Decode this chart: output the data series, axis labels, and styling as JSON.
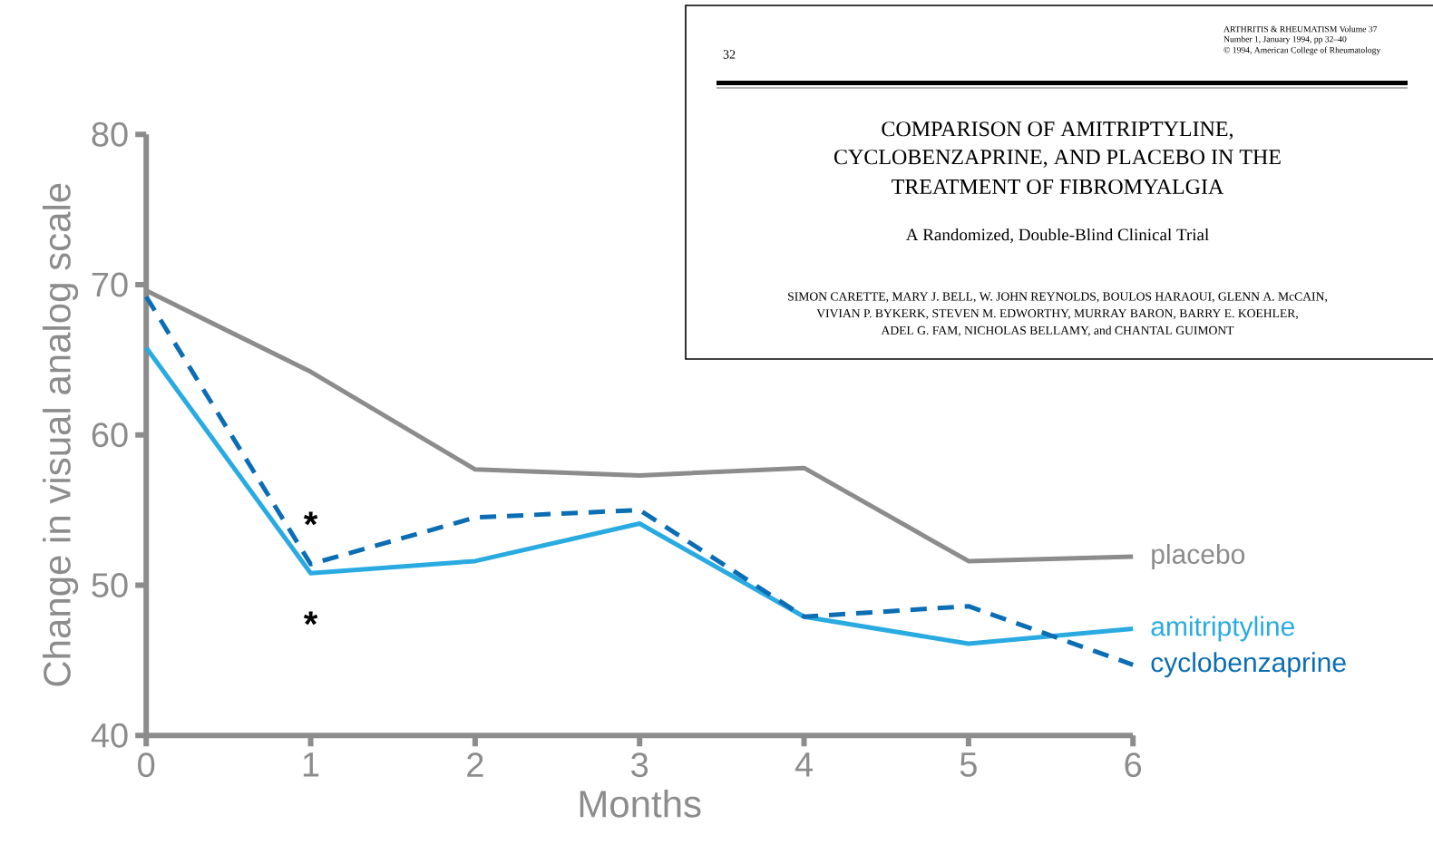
{
  "chart_data": {
    "type": "line",
    "xlabel": "Months",
    "ylabel": "Change in visual analog scale",
    "x": [
      0,
      1,
      2,
      3,
      4,
      5,
      6
    ],
    "xlim": [
      0,
      6
    ],
    "ylim": [
      40,
      80
    ],
    "xticks": [
      0,
      1,
      2,
      3,
      4,
      5,
      6
    ],
    "yticks": [
      40,
      50,
      60,
      70,
      80
    ],
    "grid": false,
    "legend": false,
    "marker": "none",
    "series": [
      {
        "name": "placebo",
        "color": "#8c8c8c",
        "line_style": "solid",
        "values": [
          69.6,
          64.2,
          57.7,
          57.3,
          57.8,
          51.6,
          51.9
        ]
      },
      {
        "name": "amitriptyline",
        "color": "#29abe2",
        "line_style": "solid",
        "values": [
          65.8,
          50.8,
          51.6,
          54.1,
          47.9,
          46.1,
          47.1
        ]
      },
      {
        "name": "cyclobenzaprine",
        "color": "#0b6db4",
        "line_style": "dashed",
        "values": [
          69.2,
          51.4,
          54.5,
          55.0,
          47.9,
          48.6,
          44.7
        ]
      }
    ],
    "annotations": [
      "32",
      "ARTHRITIS & RHEUMATISM Volume 37",
      "Number 1, January 1994, pp 32–40",
      "© 1994, American College of Rheumatology",
      "COMPARISON OF AMITRIPTYLINE,",
      "CYCLOBENZAPRINE, AND PLACEBO IN THE",
      "TREATMENT OF FIBROMYALGIA",
      "A Randomized, Double-Blind Clinical Trial",
      "SIMON CARETTE, MARY J. BELL, W. JOHN REYNOLDS, BOULOS HARAOUI, GLENN A. McCAIN,",
      "VIVIAN P. BYKERK, STEVEN M. EDWORTHY, MURRAY BARON, BARRY E. KOEHLER,",
      "ADEL G. FAM, NICHOLAS BELLAMY, and CHANTAL GUIMONT",
      "*",
      "*"
    ]
  }
}
